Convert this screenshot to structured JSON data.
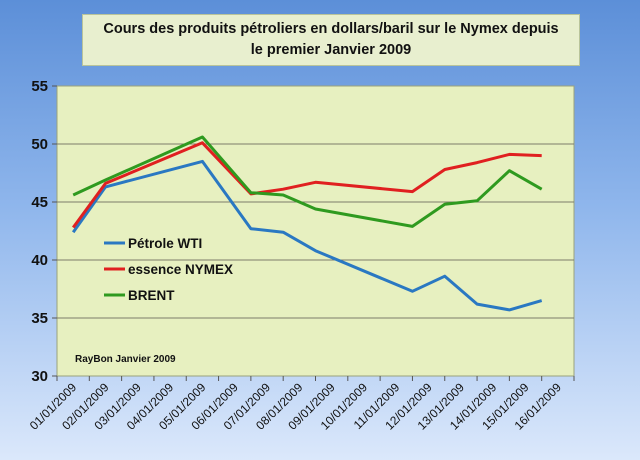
{
  "chart_data": {
    "type": "line",
    "title": "Cours des produits pétroliers en dollars/baril sur le Nymex depuis le premier Janvier 2009",
    "title_lines": [
      "Cours des produits pétroliers en dollars/baril sur le Nymex depuis",
      "le premier Janvier 2009"
    ],
    "xlabel": "",
    "ylabel": "",
    "ylim": [
      30,
      55
    ],
    "yticks": [
      30,
      35,
      40,
      45,
      50,
      55
    ],
    "grid": true,
    "legend_position": "center-left",
    "annotation": "RayBon Janvier 2009",
    "categories": [
      "01/01/2009",
      "02/01/2009",
      "03/01/2009",
      "04/01/2009",
      "05/01/2009",
      "06/01/2009",
      "07/01/2009",
      "08/01/2009",
      "09/01/2009",
      "10/01/2009",
      "11/01/2009",
      "12/01/2009",
      "13/01/2009",
      "14/01/2009",
      "15/01/2009",
      "16/01/2009"
    ],
    "series": [
      {
        "name": "Pétrole WTI",
        "color": "#2a78c2",
        "points": [
          [
            0,
            42.4
          ],
          [
            1,
            46.3
          ],
          [
            4,
            48.5
          ],
          [
            5.5,
            42.7
          ],
          [
            6.5,
            42.4
          ],
          [
            7.5,
            40.8
          ],
          [
            10.5,
            37.3
          ],
          [
            11.5,
            38.6
          ],
          [
            12.5,
            36.2
          ],
          [
            13.5,
            35.7
          ],
          [
            14.5,
            36.5
          ]
        ]
      },
      {
        "name": "essence NYMEX",
        "color": "#e02020",
        "points": [
          [
            0,
            42.8
          ],
          [
            1,
            46.6
          ],
          [
            4,
            50.1
          ],
          [
            5.5,
            45.7
          ],
          [
            6.5,
            46.1
          ],
          [
            7.5,
            46.7
          ],
          [
            10.5,
            45.9
          ],
          [
            11.5,
            47.8
          ],
          [
            12.5,
            48.4
          ],
          [
            13.5,
            49.1
          ],
          [
            14.5,
            49.0
          ]
        ]
      },
      {
        "name": "BRENT",
        "color": "#2f9a1f",
        "points": [
          [
            0,
            45.6
          ],
          [
            1,
            46.9
          ],
          [
            4,
            50.6
          ],
          [
            5.5,
            45.8
          ],
          [
            6.5,
            45.6
          ],
          [
            7.5,
            44.4
          ],
          [
            10.5,
            42.9
          ],
          [
            11.5,
            44.8
          ],
          [
            12.5,
            45.1
          ],
          [
            13.5,
            47.7
          ],
          [
            14.5,
            46.1
          ]
        ]
      }
    ]
  }
}
